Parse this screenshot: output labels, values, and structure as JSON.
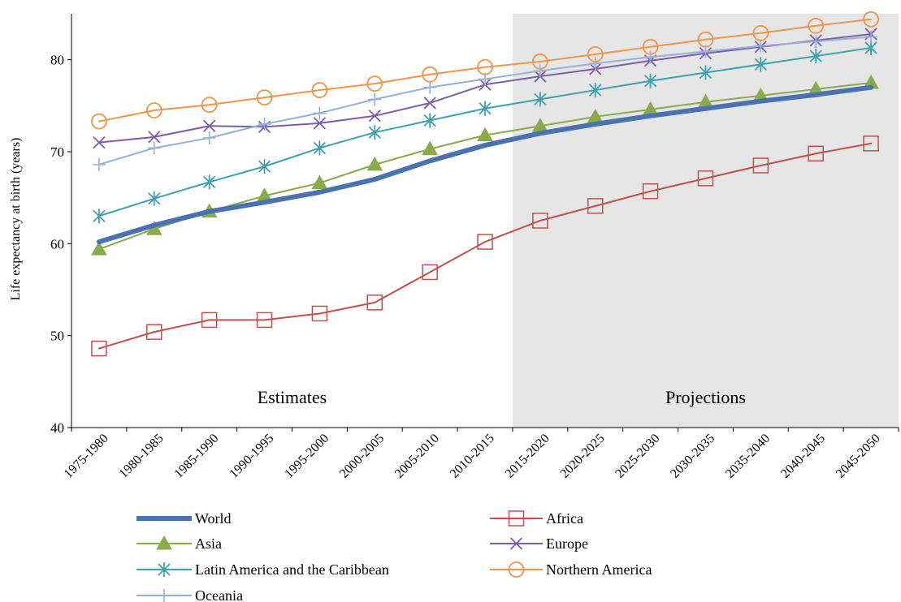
{
  "chart_data": {
    "type": "line",
    "ylabel": "Life expectancy at birth (years)",
    "ylim": [
      40,
      85
    ],
    "yticks": [
      40,
      50,
      60,
      70,
      80
    ],
    "categories": [
      "1975-1980",
      "1980-1985",
      "1985-1990",
      "1990-1995",
      "1995-2000",
      "2000-2005",
      "2005-2010",
      "2010-2015",
      "2015-2020",
      "2020-2025",
      "2025-2030",
      "2030-2035",
      "2035-2040",
      "2040-2045",
      "2045-2050"
    ],
    "regions": [
      {
        "label": "Estimates",
        "from_index": 0,
        "to_index": 7
      },
      {
        "label": "Projections",
        "from_index": 8,
        "to_index": 14,
        "shaded": true,
        "shade_color": "#e6e6e6"
      }
    ],
    "legend_position": "bottom",
    "series": [
      {
        "name": "World",
        "color": "#4a72b0",
        "marker": "none",
        "thick": true,
        "values": [
          60.2,
          62.0,
          63.5,
          64.5,
          65.6,
          67.0,
          69.0,
          70.7,
          72.0,
          73.0,
          73.9,
          74.7,
          75.5,
          76.2,
          77.0
        ]
      },
      {
        "name": "Africa",
        "color": "#c0504d",
        "marker": "square",
        "values": [
          48.6,
          50.4,
          51.7,
          51.7,
          52.4,
          53.6,
          56.9,
          60.2,
          62.5,
          64.1,
          65.7,
          67.1,
          68.5,
          69.8,
          70.9
        ]
      },
      {
        "name": "Asia",
        "color": "#8aaa4e",
        "marker": "triangle",
        "values": [
          59.4,
          61.6,
          63.5,
          65.2,
          66.6,
          68.6,
          70.3,
          71.8,
          72.8,
          73.8,
          74.6,
          75.4,
          76.1,
          76.8,
          77.5
        ]
      },
      {
        "name": "Europe",
        "color": "#7b5ea7",
        "marker": "x",
        "values": [
          71.0,
          71.6,
          72.8,
          72.7,
          73.1,
          73.9,
          75.3,
          77.3,
          78.2,
          79.0,
          79.9,
          80.7,
          81.4,
          82.1,
          82.8
        ]
      },
      {
        "name": "Latin America and the Caribbean",
        "color": "#3fa0b0",
        "marker": "asterisk",
        "values": [
          63.0,
          64.9,
          66.7,
          68.4,
          70.4,
          72.1,
          73.4,
          74.7,
          75.7,
          76.7,
          77.7,
          78.6,
          79.5,
          80.4,
          81.3
        ]
      },
      {
        "name": "Northern America",
        "color": "#f0954a",
        "marker": "circle",
        "values": [
          73.3,
          74.5,
          75.1,
          75.9,
          76.7,
          77.4,
          78.4,
          79.2,
          79.8,
          80.6,
          81.4,
          82.2,
          82.9,
          83.7,
          84.4
        ]
      },
      {
        "name": "Oceania",
        "color": "#98b0d8",
        "marker": "plus",
        "values": [
          68.6,
          70.4,
          71.5,
          73.0,
          74.2,
          75.7,
          77.0,
          77.9,
          78.8,
          79.6,
          80.3,
          80.9,
          81.5,
          82.0,
          82.5
        ]
      }
    ]
  }
}
